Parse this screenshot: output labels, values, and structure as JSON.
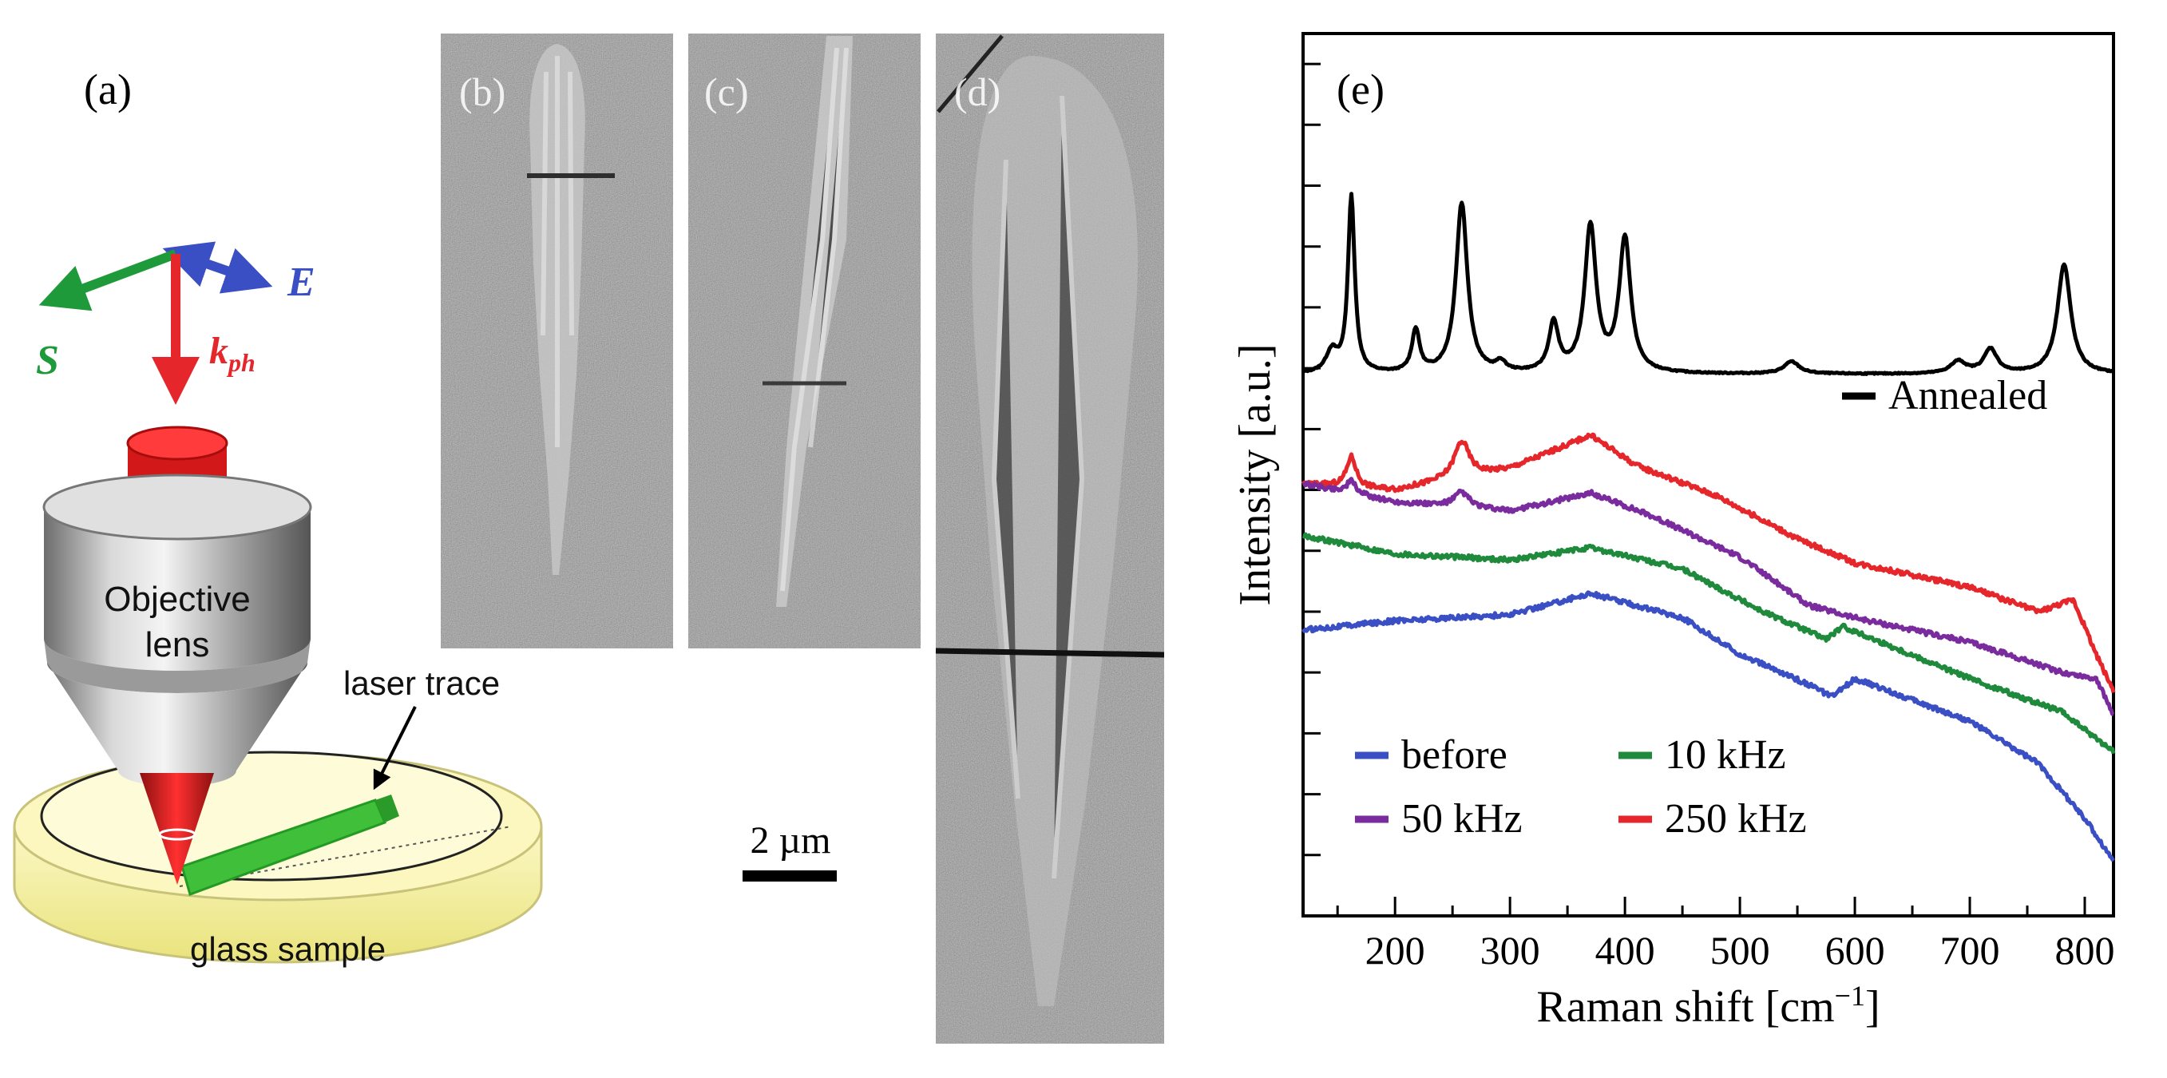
{
  "panels": {
    "a": {
      "label": "(a)",
      "e_label": "E",
      "s_label": "S",
      "k_label": "k",
      "k_sub": "ph",
      "objective_line1": "Objective",
      "objective_line2": "lens",
      "laser_trace": "laser trace",
      "glass_sample": "glass sample",
      "colors": {
        "E": "#3b4fc4",
        "S": "#1f9a3a",
        "k": "#e5262b"
      }
    },
    "b": {
      "label": "(b)"
    },
    "c": {
      "label": "(c)"
    },
    "d": {
      "label": "(d)"
    },
    "scale_bar": {
      "label": "2 µm"
    },
    "e": {
      "label": "(e)"
    }
  },
  "chart_data": {
    "type": "line",
    "panel": "(e)",
    "xlabel": "Raman shift [cm",
    "xlabel_sup": "−1",
    "xlabel_end": "]",
    "ylabel": "Intensity [a.u.]",
    "xlim": [
      120,
      825
    ],
    "ylim": [
      0,
      14.5
    ],
    "x_ticks": [
      200,
      300,
      400,
      500,
      600,
      700,
      800
    ],
    "series": [
      {
        "name": "Annealed",
        "color": "#000000",
        "baseline": 8.9,
        "peaks": [
          [
            145,
            0.35,
            6
          ],
          [
            162,
            2.9,
            3.5
          ],
          [
            218,
            0.7,
            4
          ],
          [
            258,
            2.8,
            6
          ],
          [
            292,
            0.15,
            5
          ],
          [
            338,
            0.8,
            5
          ],
          [
            370,
            2.4,
            6
          ],
          [
            400,
            2.2,
            6
          ],
          [
            545,
            0.2,
            8
          ],
          [
            690,
            0.2,
            8
          ],
          [
            718,
            0.4,
            7
          ],
          [
            782,
            1.8,
            7
          ]
        ],
        "points": [
          [
            120,
            8.9
          ],
          [
            825,
            8.9
          ]
        ]
      },
      {
        "name": "250 kHz",
        "color": "#e5262b",
        "peaks": [
          [
            162,
            0.5,
            5
          ],
          [
            258,
            0.6,
            8
          ]
        ],
        "points": [
          [
            120,
            7.1
          ],
          [
            200,
            7.0
          ],
          [
            300,
            7.35
          ],
          [
            370,
            7.9
          ],
          [
            410,
            7.4
          ],
          [
            480,
            6.9
          ],
          [
            550,
            6.2
          ],
          [
            600,
            5.8
          ],
          [
            700,
            5.4
          ],
          [
            760,
            5.0
          ],
          [
            790,
            5.2
          ],
          [
            810,
            4.3
          ],
          [
            825,
            3.7
          ]
        ]
      },
      {
        "name": "50 kHz",
        "color": "#7a2c9e",
        "peaks": [
          [
            162,
            0.2,
            5
          ],
          [
            258,
            0.25,
            8
          ]
        ],
        "points": [
          [
            120,
            7.1
          ],
          [
            200,
            6.8
          ],
          [
            300,
            6.65
          ],
          [
            370,
            6.95
          ],
          [
            420,
            6.6
          ],
          [
            500,
            5.9
          ],
          [
            560,
            5.1
          ],
          [
            600,
            4.9
          ],
          [
            700,
            4.5
          ],
          [
            780,
            4.0
          ],
          [
            810,
            3.9
          ],
          [
            825,
            3.3
          ]
        ]
      },
      {
        "name": "10 kHz",
        "color": "#1f8a3c",
        "peaks": [],
        "points": [
          [
            120,
            6.25
          ],
          [
            200,
            5.95
          ],
          [
            300,
            5.85
          ],
          [
            370,
            6.05
          ],
          [
            450,
            5.7
          ],
          [
            520,
            5.0
          ],
          [
            575,
            4.55
          ],
          [
            590,
            4.75
          ],
          [
            700,
            3.9
          ],
          [
            780,
            3.35
          ],
          [
            825,
            2.7
          ]
        ]
      },
      {
        "name": "before",
        "color": "#3b4fc4",
        "peaks": [],
        "points": [
          [
            120,
            4.7
          ],
          [
            200,
            4.85
          ],
          [
            300,
            4.95
          ],
          [
            370,
            5.3
          ],
          [
            450,
            4.9
          ],
          [
            500,
            4.3
          ],
          [
            560,
            3.8
          ],
          [
            580,
            3.6
          ],
          [
            600,
            3.9
          ],
          [
            700,
            3.2
          ],
          [
            760,
            2.5
          ],
          [
            800,
            1.6
          ],
          [
            825,
            0.9
          ]
        ]
      }
    ]
  }
}
